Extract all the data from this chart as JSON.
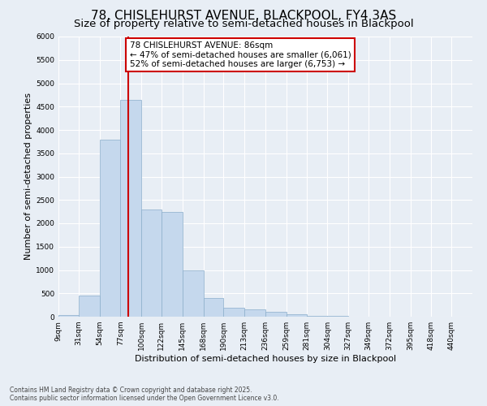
{
  "title": "78, CHISLEHURST AVENUE, BLACKPOOL, FY4 3AS",
  "subtitle": "Size of property relative to semi-detached houses in Blackpool",
  "xlabel": "Distribution of semi-detached houses by size in Blackpool",
  "ylabel": "Number of semi-detached properties",
  "footnote": "Contains HM Land Registry data © Crown copyright and database right 2025.\nContains public sector information licensed under the Open Government Licence v3.0.",
  "bar_color": "#c5d8ed",
  "bar_edge_color": "#8baecb",
  "bg_color": "#e8eef5",
  "plot_bg_color": "#e8eef5",
  "grid_color": "#ffffff",
  "vline_color": "#cc0000",
  "annotation_box_color": "#cc0000",
  "annotation_text": "78 CHISLEHURST AVENUE: 86sqm\n← 47% of semi-detached houses are smaller (6,061)\n52% of semi-detached houses are larger (6,753) →",
  "vline_x": 86,
  "bins": [
    9,
    31,
    54,
    77,
    100,
    122,
    145,
    168,
    190,
    213,
    236,
    259,
    281,
    304,
    327,
    349,
    372,
    395,
    418,
    440,
    463
  ],
  "counts": [
    30,
    450,
    3800,
    4650,
    2300,
    2250,
    1000,
    400,
    200,
    150,
    100,
    50,
    20,
    10,
    5,
    3,
    2,
    1,
    1,
    1
  ],
  "ylim": [
    0,
    6000
  ],
  "yticks": [
    0,
    500,
    1000,
    1500,
    2000,
    2500,
    3000,
    3500,
    4000,
    4500,
    5000,
    5500,
    6000
  ],
  "title_fontsize": 11,
  "subtitle_fontsize": 9.5,
  "axis_label_fontsize": 8,
  "tick_fontsize": 6.5,
  "annotation_fontsize": 7.5,
  "footnote_fontsize": 5.5
}
